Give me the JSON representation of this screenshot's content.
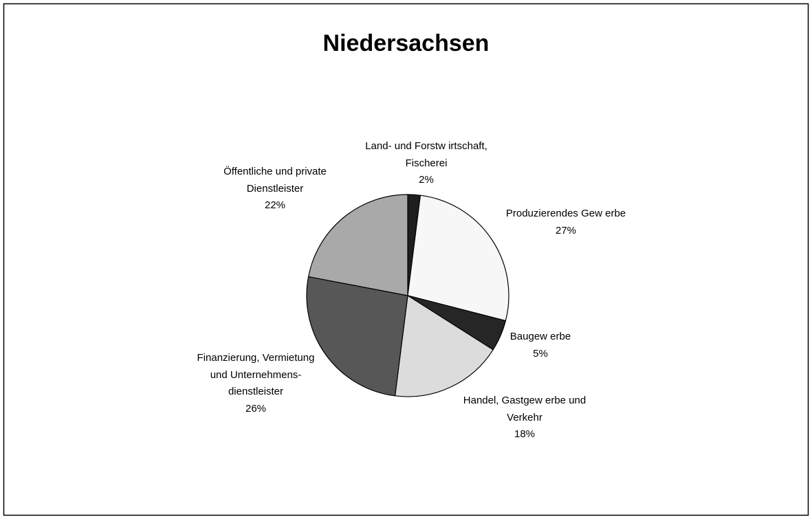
{
  "chart_data": {
    "type": "pie",
    "title": "Niedersachsen",
    "categories": [
      "Land- und Forstw irtschaft,\nFischerei",
      "Produzierendes Gew erbe",
      "Baugew erbe",
      "Handel, Gastgew erbe und\nVerkehr",
      "Finanzierung, Vermietung\nund Unternehmens-\ndienstleister",
      "Öffentliche und private\nDienstleister"
    ],
    "values": [
      2,
      27,
      5,
      18,
      26,
      22
    ],
    "value_labels": [
      "2%",
      "27%",
      "5%",
      "18%",
      "26%",
      "22%"
    ],
    "colors": [
      "#1e1e1e",
      "#f7f7f7",
      "#262626",
      "#dcdcdc",
      "#575757",
      "#a9a9a9"
    ]
  }
}
